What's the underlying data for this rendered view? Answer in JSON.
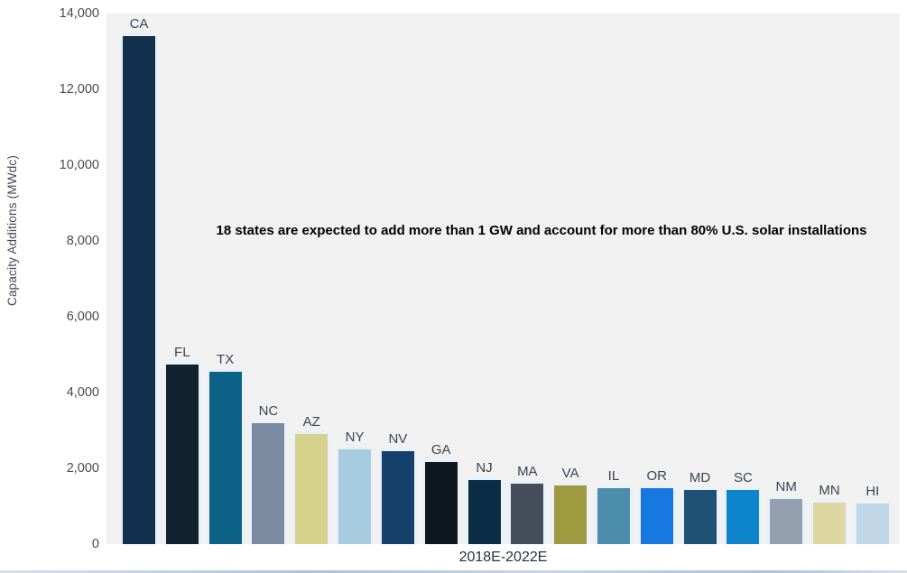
{
  "chart": {
    "y_axis_title": "Capacity Additions (MWdc)",
    "x_axis_label": "2018E-2022E",
    "annotation": "18 states are expected to add more than 1 GW and account for more than 80% U.S. solar installations",
    "plot_background": "#f1f1f2",
    "page_background": "#ffffff",
    "tick_color": "#4a4a4a",
    "bar_label_color": "#3d444d",
    "bar_halo_color": "#e9f1fa"
  },
  "chart_data": {
    "type": "bar",
    "title": "",
    "xlabel": "2018E-2022E",
    "ylabel": "Capacity Additions (MWdc)",
    "ylim": [
      0,
      14000
    ],
    "grid": false,
    "legend": "none",
    "annotation": "18 states are expected to add more than 1 GW and account for more than 80% U.S. solar installations",
    "categories": [
      "CA",
      "FL",
      "TX",
      "NC",
      "AZ",
      "NY",
      "NV",
      "GA",
      "NJ",
      "MA",
      "VA",
      "IL",
      "OR",
      "MD",
      "SC",
      "NM",
      "MN",
      "HI"
    ],
    "values": [
      13400,
      4750,
      4550,
      3200,
      2900,
      2500,
      2450,
      2170,
      1690,
      1600,
      1550,
      1480,
      1470,
      1430,
      1420,
      1200,
      1100,
      1060
    ],
    "bar_colors": [
      "#14304f",
      "#13222f",
      "#0e6186",
      "#7b8aa0",
      "#d6d28c",
      "#a7cbdf",
      "#15406b",
      "#0d1820",
      "#0b2d46",
      "#454d5a",
      "#9e9a3f",
      "#4c8dad",
      "#1778e2",
      "#1f5076",
      "#0d84cc",
      "#94a0af",
      "#ddd8a2",
      "#c1d7e7"
    ],
    "y_ticks": [
      {
        "value": 14000,
        "label": "14,000"
      },
      {
        "value": 12000,
        "label": "12,000"
      },
      {
        "value": 10000,
        "label": "10,000"
      },
      {
        "value": 8000,
        "label": "8,000"
      },
      {
        "value": 6000,
        "label": "6,000"
      },
      {
        "value": 4000,
        "label": "4,000"
      },
      {
        "value": 2000,
        "label": "2,000"
      },
      {
        "value": 0,
        "label": "0"
      }
    ]
  }
}
